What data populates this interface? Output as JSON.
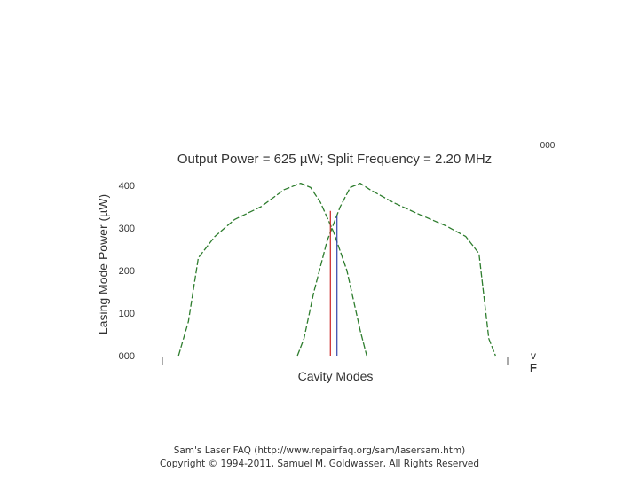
{
  "chart_data": {
    "type": "line",
    "title": "Output Power = 625 µW; Split Frequency = 2.20 MHz",
    "corner_label": "000",
    "xlabel": "Cavity Modes",
    "ylabel": "Lasing Mode Power (µW)",
    "y_ticks": [
      "000",
      "100",
      "200",
      "300",
      "400"
    ],
    "ylim": [
      0,
      400
    ],
    "xlim": [
      0,
      100
    ],
    "grid": false,
    "side_symbols": [
      "v",
      "F"
    ],
    "colors": {
      "curve": "#2e7d2e",
      "red_mode": "#cc2222",
      "blue_mode": "#3344aa",
      "text": "#333333"
    },
    "series": [
      {
        "style": "dashed",
        "color": "#2e7d2e",
        "x": [
          3,
          6,
          9,
          14,
          20,
          28,
          35,
          40,
          43,
          46,
          50,
          54,
          58,
          60
        ],
        "y": [
          0,
          80,
          230,
          280,
          320,
          350,
          390,
          405,
          395,
          360,
          290,
          200,
          60,
          0
        ]
      },
      {
        "style": "dashed",
        "color": "#2e7d2e",
        "x": [
          39,
          41,
          44,
          48,
          52,
          55,
          58,
          61,
          68,
          75,
          84,
          90,
          94,
          97,
          99
        ],
        "y": [
          0,
          40,
          150,
          270,
          350,
          395,
          405,
          390,
          360,
          335,
          305,
          280,
          240,
          40,
          0
        ]
      }
    ],
    "mode_markers": [
      {
        "color": "#cc2222",
        "x": 49,
        "height": 340
      },
      {
        "color": "#3344aa",
        "x": 51,
        "height": 330
      }
    ],
    "baseline_ticks_x": [
      0,
      100
    ]
  },
  "footer": {
    "line1": "Sam's Laser FAQ (http://www.repairfaq.org/sam/lasersam.htm)",
    "line2": "Copyright © 1994-2011, Samuel M. Goldwasser, All Rights Reserved"
  }
}
